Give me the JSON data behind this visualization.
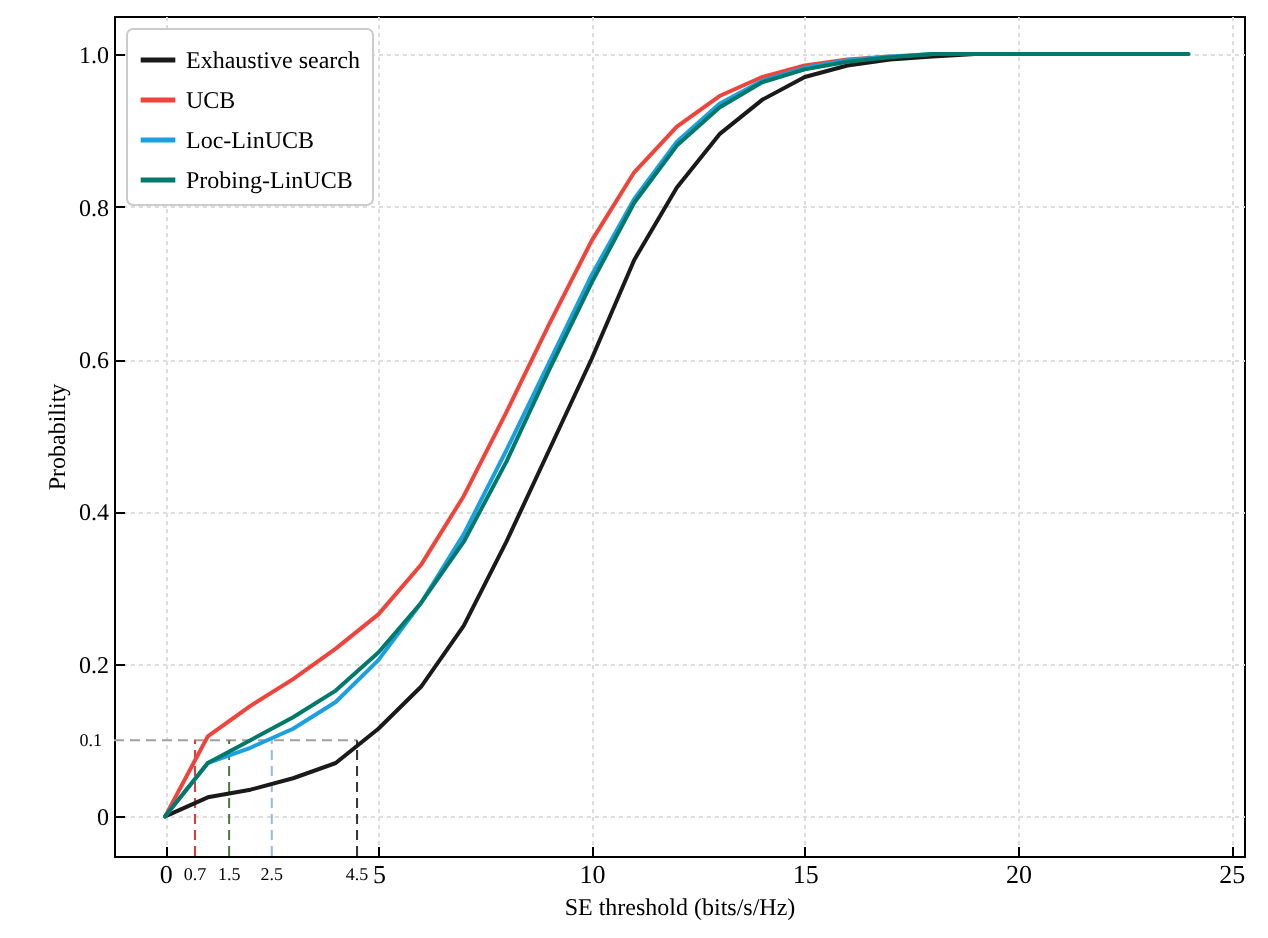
{
  "chart_data": {
    "type": "line",
    "xlabel": "SE threshold (bits/s/Hz)",
    "ylabel": "Probability",
    "x": [
      0,
      1,
      2,
      3,
      4,
      5,
      6,
      7,
      8,
      9,
      10,
      11,
      12,
      13,
      14,
      15,
      16,
      17,
      18,
      19,
      20,
      21,
      22,
      23,
      24
    ],
    "series": [
      {
        "name": "Exhaustive search",
        "color": "#1a1a1a",
        "values": [
          0,
          0.025,
          0.035,
          0.05,
          0.07,
          0.115,
          0.17,
          0.25,
          0.36,
          0.48,
          0.6,
          0.73,
          0.825,
          0.895,
          0.94,
          0.97,
          0.985,
          0.993,
          0.997,
          1,
          1,
          null,
          null,
          null,
          null
        ]
      },
      {
        "name": "UCB",
        "color": "#f0433a",
        "values": [
          0,
          0.105,
          0.145,
          0.18,
          0.22,
          0.265,
          0.33,
          0.42,
          0.53,
          0.645,
          0.755,
          0.845,
          0.905,
          0.945,
          0.97,
          0.985,
          0.993,
          0.997,
          null,
          null,
          null,
          null,
          null,
          null,
          null
        ]
      },
      {
        "name": "Loc-LinUCB",
        "color": "#1aa0e0",
        "values": [
          0,
          0.07,
          0.09,
          0.115,
          0.15,
          0.205,
          0.28,
          0.37,
          0.48,
          0.595,
          0.71,
          0.81,
          0.885,
          0.935,
          0.965,
          0.982,
          0.992,
          0.997,
          1,
          null,
          null,
          null,
          null,
          null,
          null
        ]
      },
      {
        "name": "Probing-LinUCB",
        "color": "#00796b",
        "values": [
          0,
          0.07,
          0.1,
          0.13,
          0.165,
          0.215,
          0.28,
          0.36,
          0.465,
          0.585,
          0.7,
          0.805,
          0.88,
          0.93,
          0.963,
          0.98,
          0.99,
          0.996,
          1,
          1,
          1,
          1,
          1,
          1,
          1
        ]
      }
    ],
    "xlim": [
      -1.2,
      25.3
    ],
    "ylim": [
      -0.052,
      1.05
    ],
    "xticks": [
      0,
      5,
      10,
      15,
      20,
      25
    ],
    "yticks": [
      0,
      {
        "value": 0.2,
        "label": "0.2"
      },
      {
        "value": 0.4,
        "label": "0.4"
      },
      {
        "value": 0.6,
        "label": "0.6"
      },
      {
        "value": 0.8,
        "label": "0.8"
      },
      {
        "value": 1,
        "label": "1.0"
      }
    ],
    "ref_lines": [
      {
        "axis": "y",
        "value": 0.1,
        "label": "0.1",
        "color": "#a0a0a0",
        "line_style": "dashed"
      },
      {
        "axis": "x",
        "value": 0.7,
        "label": "0.7",
        "color": "#e53935",
        "line_style": "dashed"
      },
      {
        "axis": "x",
        "value": 1.5,
        "label": "1.5",
        "color": "#4a7a3a",
        "line_style": "dashed"
      },
      {
        "axis": "x",
        "value": 2.5,
        "label": "2.5",
        "color": "#9ab8e0",
        "line_style": "dashed"
      },
      {
        "axis": "x",
        "value": 4.5,
        "label": "4.5",
        "color": "#333333",
        "line_style": "dashed"
      }
    ],
    "grid": true,
    "legend": "top left",
    "line_style": "solid",
    "marker": "none"
  }
}
